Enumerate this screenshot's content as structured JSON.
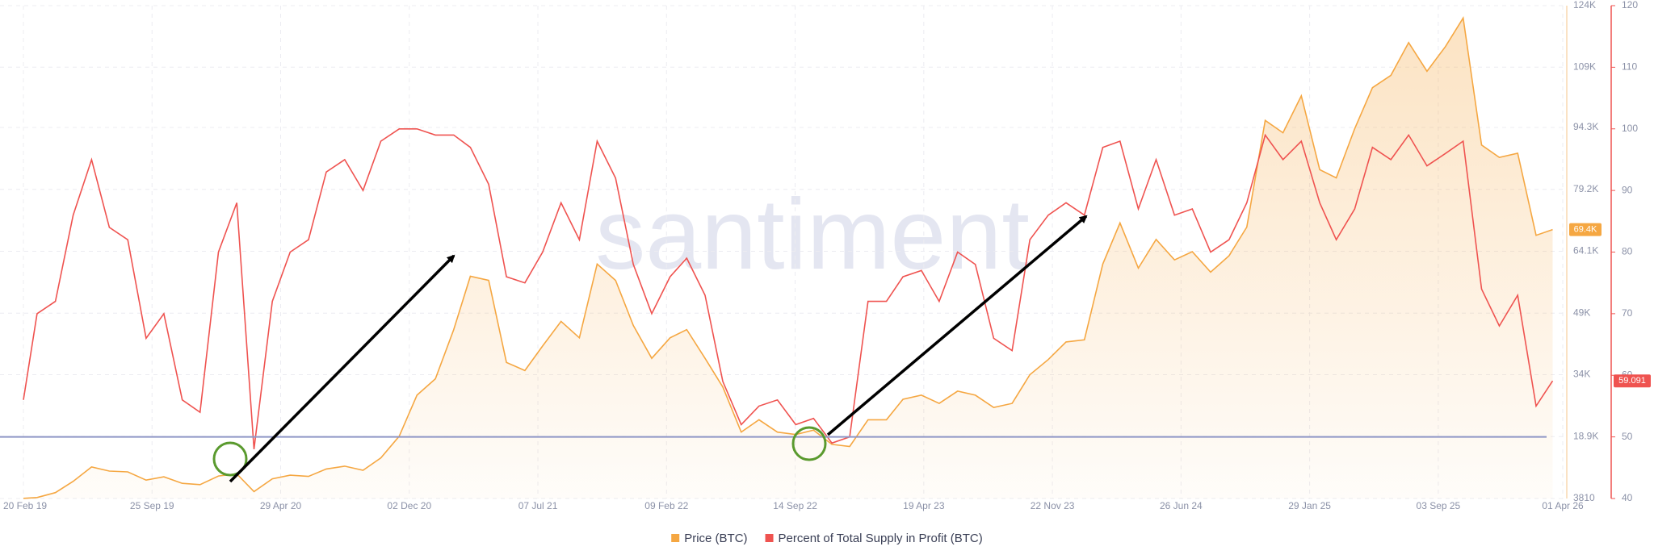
{
  "chart_data": {
    "type": "line",
    "watermark": "santiment",
    "x": [
      "2019-02-20",
      "2019-03-15",
      "2019-04-15",
      "2019-05-15",
      "2019-06-15",
      "2019-07-15",
      "2019-08-15",
      "2019-09-15",
      "2019-10-15",
      "2019-11-15",
      "2019-12-15",
      "2020-01-15",
      "2020-02-15",
      "2020-03-15",
      "2020-04-15",
      "2020-05-15",
      "2020-06-15",
      "2020-07-15",
      "2020-08-15",
      "2020-09-15",
      "2020-10-15",
      "2020-11-15",
      "2020-12-15",
      "2021-01-15",
      "2021-02-15",
      "2021-03-15",
      "2021-04-15",
      "2021-05-15",
      "2021-06-15",
      "2021-07-15",
      "2021-08-15",
      "2021-09-15",
      "2021-10-15",
      "2021-11-15",
      "2021-12-15",
      "2022-01-15",
      "2022-02-15",
      "2022-03-15",
      "2022-04-15",
      "2022-05-15",
      "2022-06-15",
      "2022-07-15",
      "2022-08-15",
      "2022-09-15",
      "2022-10-15",
      "2022-11-15",
      "2022-12-15",
      "2023-01-15",
      "2023-02-15",
      "2023-03-15",
      "2023-04-15",
      "2023-05-15",
      "2023-06-15",
      "2023-07-15",
      "2023-08-15",
      "2023-09-15",
      "2023-10-15",
      "2023-11-15",
      "2023-12-15",
      "2024-01-15",
      "2024-02-15",
      "2024-03-15",
      "2024-04-15",
      "2024-05-15",
      "2024-06-15",
      "2024-07-15",
      "2024-08-15",
      "2024-09-15",
      "2024-10-15",
      "2024-11-15",
      "2024-12-15",
      "2025-01-15",
      "2025-02-15",
      "2025-03-15",
      "2025-04-15",
      "2025-05-15",
      "2025-06-15",
      "2025-07-15",
      "2025-08-15",
      "2025-09-15",
      "2025-10-15",
      "2025-11-15",
      "2025-12-15",
      "2026-01-15",
      "2026-02-15",
      "2026-03-15"
    ],
    "series": [
      {
        "name": "Price (BTC)",
        "color": "#f5a742",
        "axis": "y",
        "area": true,
        "current_label": "69.4K",
        "values": [
          3850,
          4050,
          5250,
          8000,
          11500,
          10500,
          10300,
          8300,
          9100,
          7500,
          7200,
          9300,
          9800,
          5500,
          8600,
          9500,
          9200,
          11000,
          11700,
          10700,
          13700,
          19000,
          29000,
          33000,
          45000,
          58000,
          57000,
          37000,
          35000,
          41000,
          47000,
          43000,
          61000,
          57000,
          46000,
          38000,
          43000,
          45000,
          38000,
          31000,
          20000,
          23000,
          20000,
          19400,
          20500,
          17000,
          16500,
          23000,
          23000,
          28000,
          29000,
          27000,
          30000,
          29000,
          26000,
          27000,
          34000,
          37700,
          42000,
          42500,
          61000,
          71000,
          60000,
          67000,
          62000,
          64000,
          59000,
          63000,
          70000,
          96000,
          93000,
          102000,
          84000,
          82000,
          94000,
          104000,
          107000,
          115000,
          108000,
          114000,
          121000,
          90000,
          87000,
          88000,
          68000,
          69400
        ]
      },
      {
        "name": "Percent of Total Supply in Profit (BTC)",
        "color": "#ef5350",
        "axis": "y2",
        "current_label": "59.091",
        "values": [
          56,
          70,
          72,
          86,
          95,
          84,
          82,
          66,
          70,
          56,
          54,
          80,
          88,
          48,
          72,
          80,
          82,
          93,
          95,
          90,
          98,
          100,
          100,
          99,
          99,
          97,
          91,
          76,
          75,
          80,
          88,
          82,
          98,
          92,
          78,
          70,
          76,
          79,
          73,
          59,
          52,
          55,
          56,
          52,
          53,
          49,
          50,
          72,
          72,
          76,
          77,
          72,
          80,
          78,
          66,
          64,
          82,
          86,
          88,
          86,
          97,
          98,
          87,
          95,
          86,
          87,
          80,
          82,
          88,
          99,
          95,
          98,
          88,
          82,
          87,
          97,
          95,
          99,
          94,
          96,
          98,
          74,
          68,
          73,
          55,
          59.091
        ]
      }
    ],
    "xlim": [
      "2019-02-20",
      "2026-04-01"
    ],
    "xticks": [
      {
        "value": "2019-02-20",
        "label": "20 Feb 19"
      },
      {
        "value": "2019-09-25",
        "label": "25 Sep 19"
      },
      {
        "value": "2020-04-29",
        "label": "29 Apr 20"
      },
      {
        "value": "2020-12-02",
        "label": "02 Dec 20"
      },
      {
        "value": "2021-07-07",
        "label": "07 Jul 21"
      },
      {
        "value": "2022-02-09",
        "label": "09 Feb 22"
      },
      {
        "value": "2022-09-14",
        "label": "14 Sep 22"
      },
      {
        "value": "2023-04-19",
        "label": "19 Apr 23"
      },
      {
        "value": "2023-11-22",
        "label": "22 Nov 23"
      },
      {
        "value": "2024-06-26",
        "label": "26 Jun 24"
      },
      {
        "value": "2025-01-29",
        "label": "29 Jan 25"
      },
      {
        "value": "2025-09-03",
        "label": "03 Sep 25"
      },
      {
        "value": "2026-04-01",
        "label": "01 Apr 26"
      }
    ],
    "ylim": [
      3810,
      124000
    ],
    "yticks": [
      3810,
      {
        "value": 18900,
        "label": "18.9K"
      },
      {
        "value": 34000,
        "label": "34K"
      },
      {
        "value": 49000,
        "label": "49K"
      },
      {
        "value": 64100,
        "label": "64.1K"
      },
      {
        "value": 79200,
        "label": "79.2K"
      },
      {
        "value": 94300,
        "label": "94.3K"
      },
      {
        "value": 109000,
        "label": "109K"
      },
      {
        "value": 124000,
        "label": "124K"
      }
    ],
    "y2lim": [
      40,
      120
    ],
    "y2ticks": [
      40,
      50,
      60,
      70,
      80,
      90,
      100,
      110,
      120
    ],
    "reference_line": {
      "axis": "y2",
      "value": 50,
      "color": "#8e96c6"
    },
    "grid": true,
    "legend": "bottom"
  }
}
